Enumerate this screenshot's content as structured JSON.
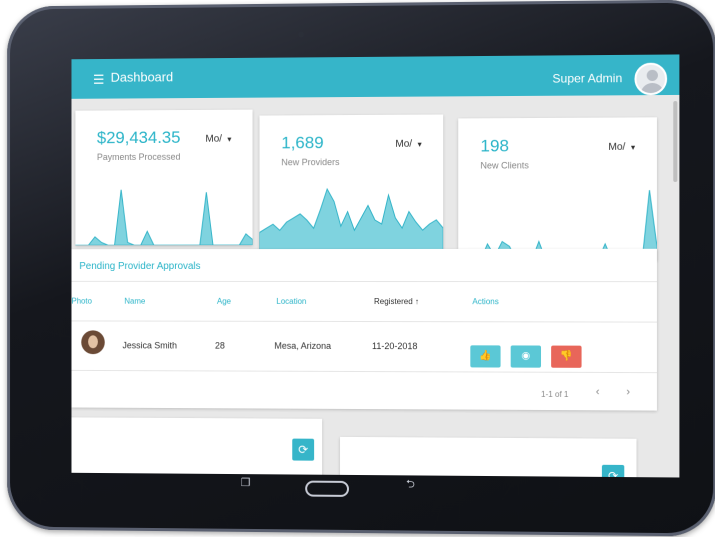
{
  "colors": {
    "accent": "#36b5c9",
    "approve": "#5bc8d6",
    "reject": "#e8665a"
  },
  "topbar": {
    "menu_icon": "menu-icon",
    "title": "Dashboard",
    "user": "Super Admin"
  },
  "stats": [
    {
      "value": "$29,434.35",
      "label": "Payments Processed",
      "period": "Mo/",
      "sparkline": [
        0,
        0,
        0,
        6,
        2,
        0,
        0,
        40,
        2,
        0,
        0,
        10,
        0,
        0,
        0,
        0,
        0,
        0,
        0,
        0,
        38,
        0,
        0,
        0,
        0,
        0,
        8,
        4
      ]
    },
    {
      "value": "1,689",
      "label": "New Providers",
      "period": "Mo/",
      "sparkline": [
        20,
        24,
        28,
        22,
        30,
        34,
        38,
        32,
        24,
        42,
        62,
        50,
        26,
        40,
        22,
        34,
        46,
        32,
        28,
        56,
        34,
        24,
        40,
        30,
        22,
        28,
        32,
        24
      ]
    },
    {
      "value": "198",
      "label": "New Clients",
      "period": "Mo/",
      "sparkline": [
        0,
        0,
        0,
        0,
        14,
        4,
        16,
        12,
        0,
        0,
        0,
        16,
        0,
        0,
        0,
        0,
        0,
        0,
        8,
        0,
        14,
        0,
        0,
        6,
        0,
        0,
        58,
        12
      ]
    }
  ],
  "approvals": {
    "title": "Pending Provider Approvals",
    "columns": [
      "Photo",
      "Name",
      "Age",
      "Location",
      "Registered",
      "Actions"
    ],
    "rows": [
      {
        "name": "Jessica Smith",
        "age": "28",
        "location": "Mesa, Arizona",
        "registered": "11-20-2018"
      }
    ],
    "pager": "1-1 of 1"
  }
}
